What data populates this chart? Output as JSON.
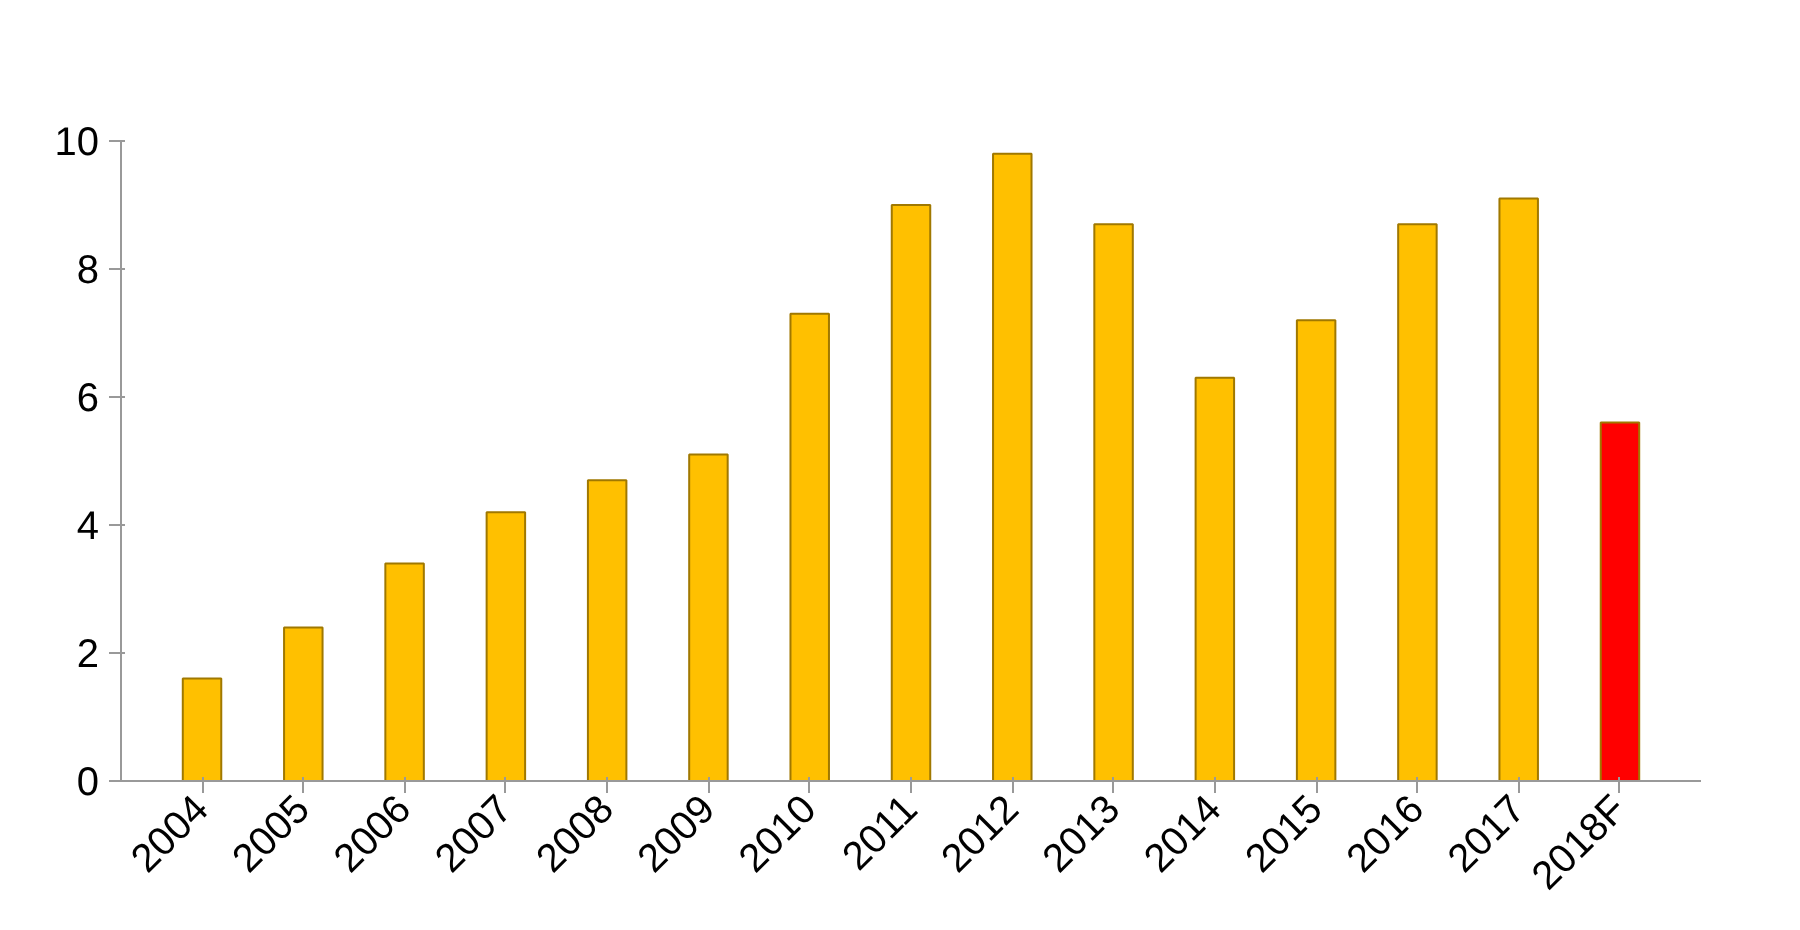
{
  "chart_data": {
    "type": "bar",
    "categories": [
      "2004",
      "2005",
      "2006",
      "2007",
      "2008",
      "2009",
      "2010",
      "2011",
      "2012",
      "2013",
      "2014",
      "2015",
      "2016",
      "2017",
      "2018F"
    ],
    "values": [
      1.6,
      2.4,
      3.4,
      4.2,
      4.7,
      5.1,
      7.3,
      9.0,
      9.8,
      8.7,
      6.3,
      7.2,
      8.7,
      9.1,
      5.6
    ],
    "colors": [
      "#ffc000",
      "#ffc000",
      "#ffc000",
      "#ffc000",
      "#ffc000",
      "#ffc000",
      "#ffc000",
      "#ffc000",
      "#ffc000",
      "#ffc000",
      "#ffc000",
      "#ffc000",
      "#ffc000",
      "#ffc000",
      "#ff0000"
    ],
    "ylim": [
      0,
      10
    ],
    "yticks": [
      0,
      2,
      4,
      6,
      8,
      10
    ],
    "grid": false
  }
}
